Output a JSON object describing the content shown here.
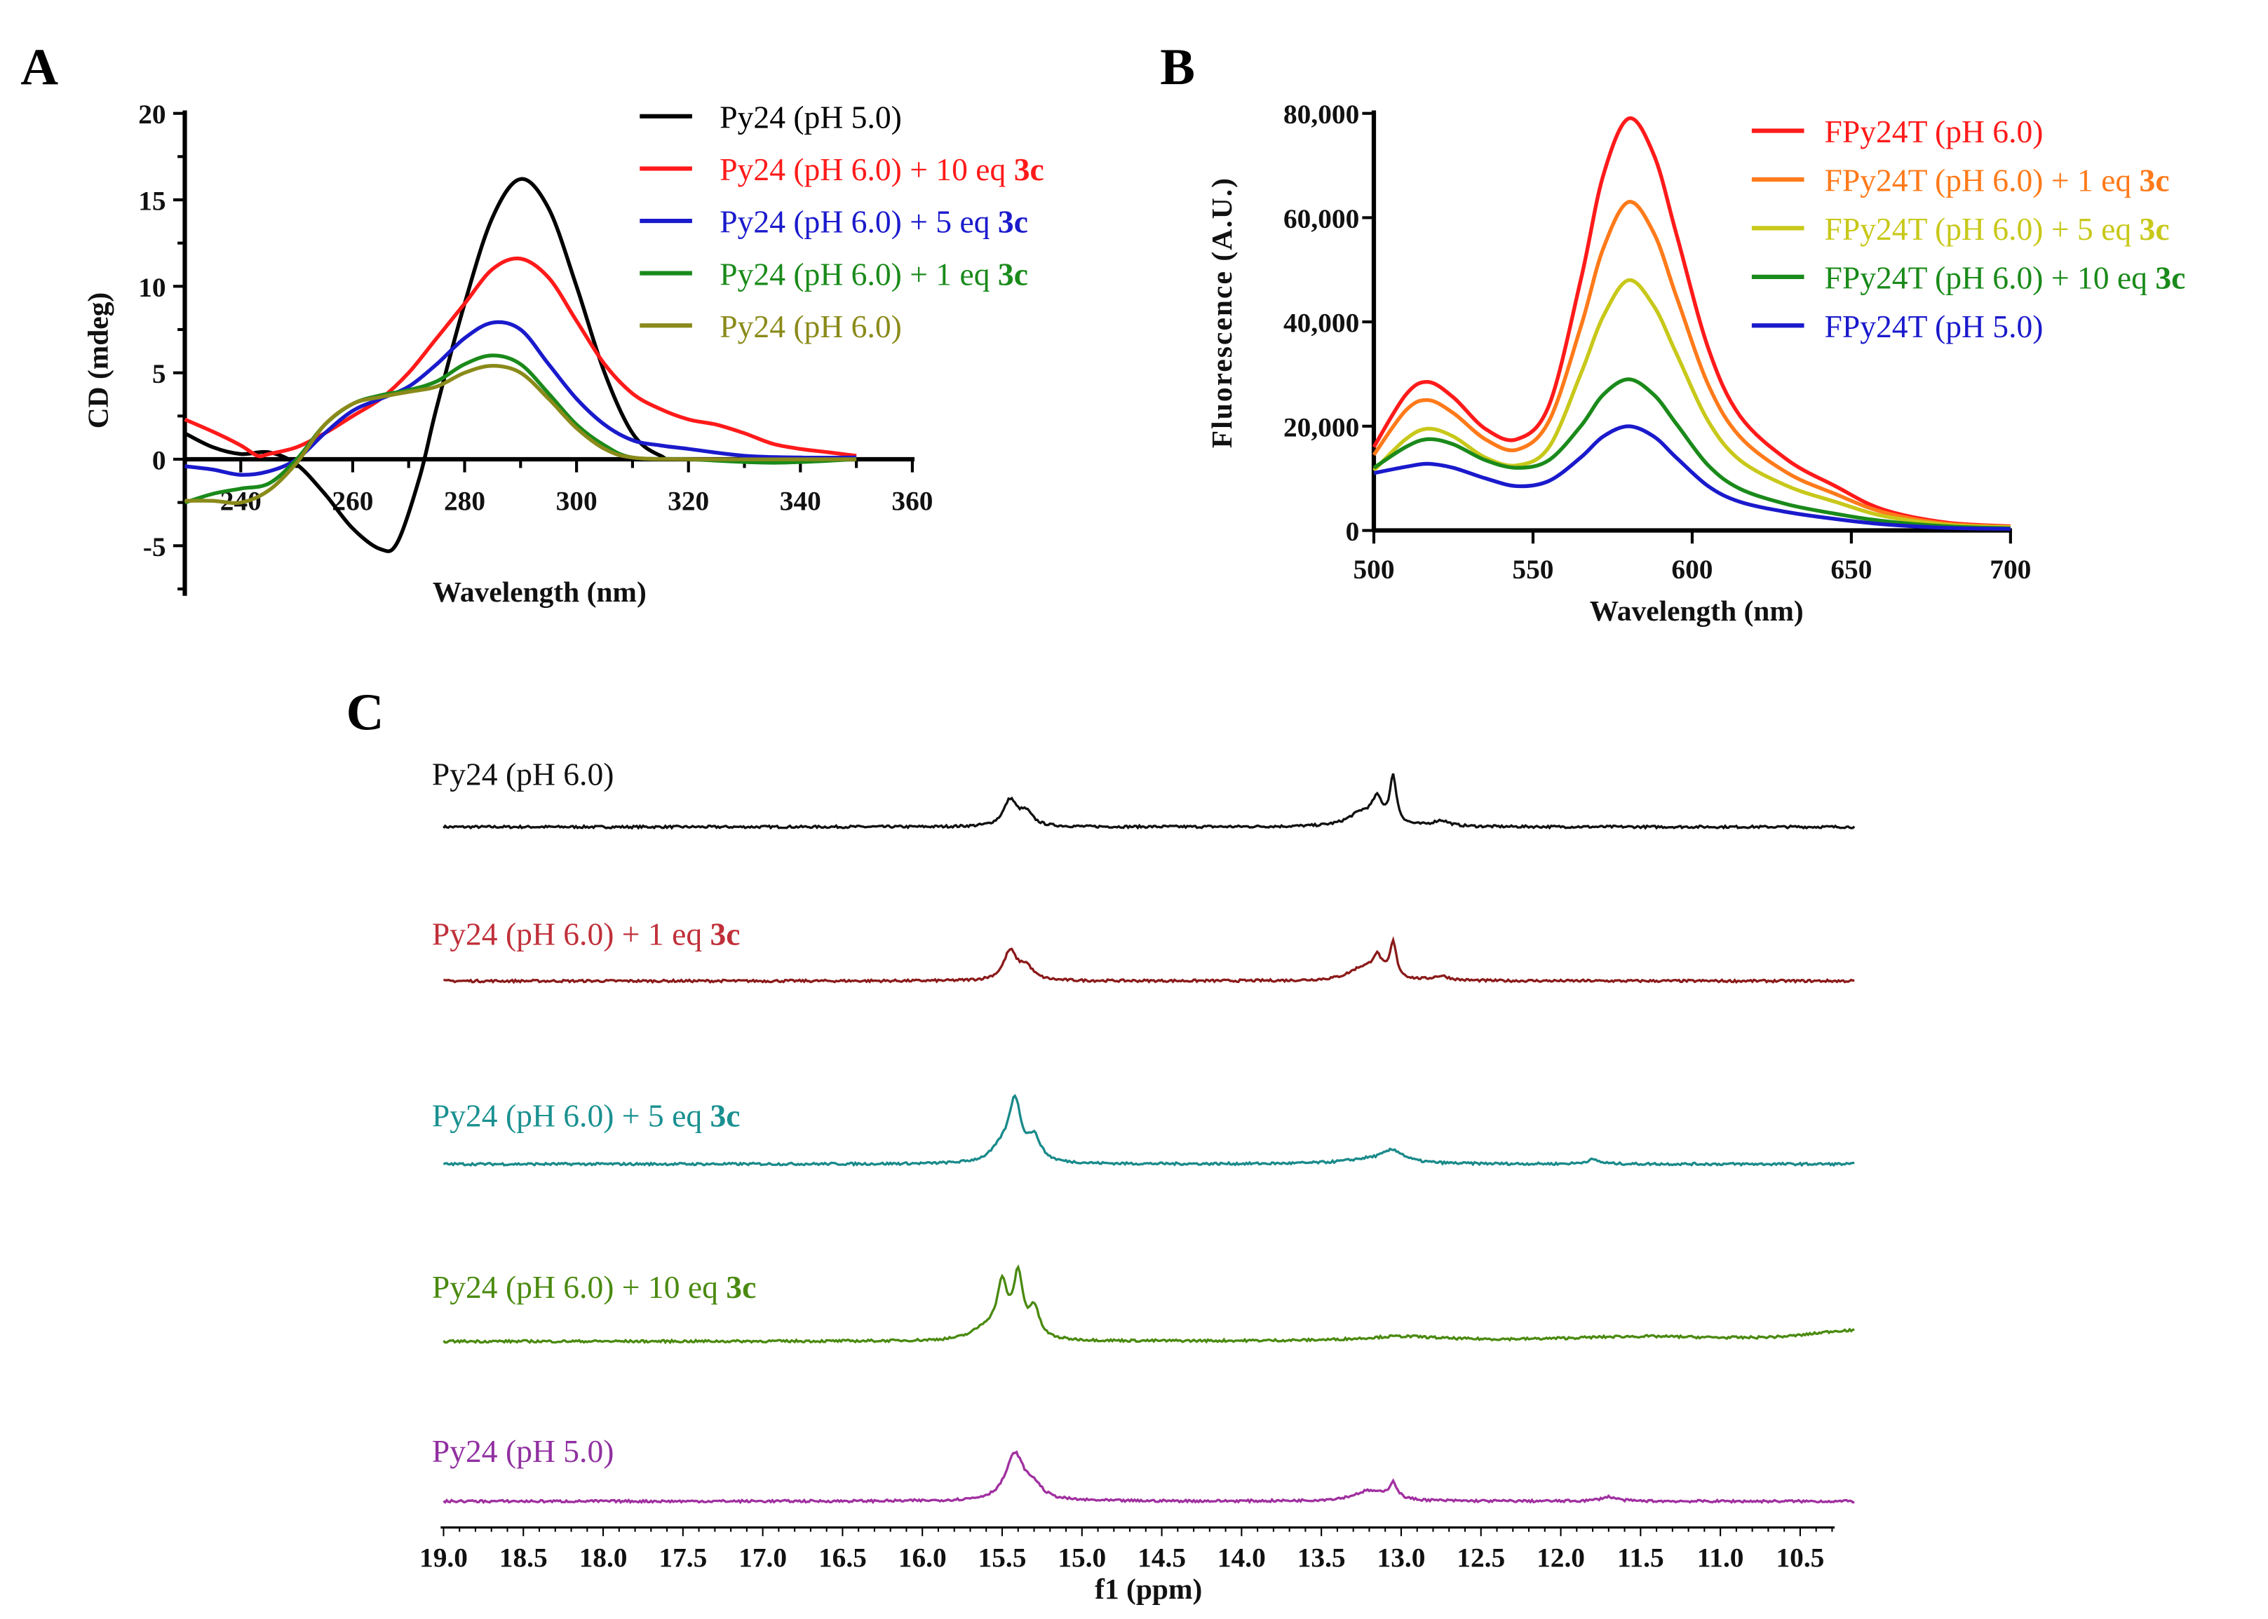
{
  "chart_data": [
    {
      "panel": "A",
      "type": "line",
      "xlabel": "Wavelength (nm)",
      "ylabel": "CD (mdeg)",
      "xlim": [
        230,
        360
      ],
      "ylim": [
        -7.5,
        20
      ],
      "xticks": [
        "240",
        "260",
        "280",
        "300",
        "320",
        "340",
        "360"
      ],
      "yticks": [
        "20",
        "15",
        "10",
        "5",
        "0",
        "-5"
      ],
      "legend_position": "top-right",
      "series": [
        {
          "name": "Py24 (pH 5.0)",
          "bold": "",
          "color": "#000000",
          "x": [
            230,
            235,
            240,
            245,
            250,
            255,
            260,
            265,
            268,
            272,
            275,
            280,
            285,
            290,
            295,
            300,
            305,
            310,
            315,
            320,
            350
          ],
          "y": [
            1.5,
            0.7,
            0.3,
            0.4,
            -0.3,
            -2,
            -4,
            -5.2,
            -4.8,
            -1,
            3,
            9,
            14,
            16.2,
            14.5,
            10,
            5,
            1.5,
            0.2,
            0,
            0
          ]
        },
        {
          "name": "Py24 (pH 6.0) + 10 eq ",
          "bold": "3c",
          "color": "#ff1a1a",
          "x": [
            230,
            235,
            240,
            243,
            245,
            250,
            255,
            260,
            265,
            270,
            275,
            280,
            285,
            290,
            295,
            300,
            305,
            310,
            315,
            320,
            325,
            330,
            335,
            340,
            345,
            350
          ],
          "y": [
            2.3,
            1.6,
            0.8,
            0.2,
            0.3,
            0.7,
            1.5,
            2.5,
            3.5,
            5,
            7,
            9,
            11,
            11.6,
            10.5,
            8,
            5.5,
            3.8,
            2.9,
            2.3,
            2,
            1.5,
            0.9,
            0.6,
            0.4,
            0.2
          ]
        },
        {
          "name": "Py24 (pH 6.0) + 5 eq ",
          "bold": "3c",
          "color": "#1a1acc",
          "x": [
            230,
            235,
            240,
            245,
            250,
            255,
            260,
            265,
            270,
            275,
            280,
            285,
            290,
            295,
            300,
            305,
            310,
            315,
            320,
            330,
            340,
            350
          ],
          "y": [
            -0.4,
            -0.6,
            -0.9,
            -0.7,
            0,
            1.5,
            2.8,
            3.5,
            4.2,
            5.5,
            7,
            7.9,
            7.5,
            5.5,
            3.5,
            2,
            1.1,
            0.8,
            0.6,
            0.2,
            0.1,
            0.1
          ]
        },
        {
          "name": "Py24 (pH 6.0) + 1 eq ",
          "bold": "3c",
          "color": "#1a8a1a",
          "x": [
            230,
            235,
            240,
            245,
            250,
            255,
            260,
            265,
            270,
            275,
            280,
            285,
            290,
            295,
            300,
            305,
            310,
            320,
            335,
            350
          ],
          "y": [
            -2.5,
            -2,
            -1.7,
            -1.4,
            0,
            2,
            3.2,
            3.7,
            4,
            4.5,
            5.5,
            6,
            5.5,
            3.8,
            2,
            0.8,
            0.1,
            0,
            -0.2,
            0
          ]
        },
        {
          "name": "Py24 (pH 6.0)",
          "bold": "",
          "color": "#8a8a1a",
          "x": [
            230,
            235,
            240,
            245,
            250,
            255,
            260,
            265,
            270,
            275,
            280,
            285,
            290,
            295,
            300,
            305,
            310,
            320,
            350
          ],
          "y": [
            -2.4,
            -2.4,
            -2.5,
            -1.8,
            -0.2,
            2,
            3.2,
            3.6,
            3.9,
            4.2,
            5,
            5.4,
            5,
            3.5,
            1.8,
            0.6,
            0.1,
            0,
            0
          ]
        }
      ]
    },
    {
      "panel": "B",
      "type": "line",
      "xlabel": "Wavelength (nm)",
      "ylabel": "Fluorescence (A.U.)",
      "xlim": [
        500,
        700
      ],
      "ylim": [
        0,
        80000
      ],
      "xticks": [
        "500",
        "550",
        "600",
        "650",
        "700"
      ],
      "yticks": [
        "80,000",
        "60,000",
        "40,000",
        "20,000",
        "0"
      ],
      "legend_position": "top-right",
      "x": [
        500,
        510,
        517,
        525,
        535,
        545,
        555,
        565,
        572,
        580,
        588,
        595,
        605,
        615,
        630,
        645,
        660,
        680,
        700
      ],
      "series": [
        {
          "name": "FPy24T (pH 6.0)",
          "bold": "",
          "color": "#ff1a1a",
          "y": [
            16000,
            26000,
            28500,
            25500,
            19500,
            17500,
            24000,
            48000,
            68000,
            79000,
            72000,
            57000,
            35000,
            22000,
            13500,
            8500,
            4000,
            1500,
            800
          ]
        },
        {
          "name": "FPy24T (pH 6.0) + 1 eq ",
          "bold": "3c",
          "color": "#ff7a1a",
          "y": [
            14500,
            23000,
            25000,
            22500,
            17500,
            15500,
            21000,
            39000,
            54000,
            63000,
            57000,
            45000,
            28000,
            18000,
            11000,
            7000,
            3500,
            1300,
            700
          ]
        },
        {
          "name": "FPy24T (pH 6.0) + 5 eq ",
          "bold": "3c",
          "color": "#c8c81a",
          "y": [
            11500,
            17500,
            19500,
            18000,
            14000,
            12500,
            16000,
            30000,
            41000,
            48000,
            43000,
            34000,
            21000,
            13500,
            8500,
            5500,
            2800,
            1100,
            600
          ]
        },
        {
          "name": "FPy24T (pH 6.0) + 10 eq ",
          "bold": "3c",
          "color": "#1a8a1a",
          "y": [
            12000,
            16000,
            17500,
            16500,
            13500,
            12000,
            13500,
            20000,
            26000,
            29000,
            26000,
            20500,
            12500,
            8000,
            5000,
            3200,
            1800,
            800,
            400
          ]
        },
        {
          "name": "FPy24T (pH 5.0)",
          "bold": "",
          "color": "#1a1acc",
          "y": [
            11000,
            12200,
            12800,
            12000,
            10000,
            8500,
            9500,
            14000,
            18000,
            20000,
            18000,
            14000,
            8500,
            5500,
            3500,
            2200,
            1200,
            500,
            300
          ]
        }
      ]
    },
    {
      "panel": "C",
      "type": "line",
      "xlabel": "f1 (ppm)",
      "xlim": [
        19.0,
        10.2
      ],
      "xticks": [
        "19.0",
        "18.5",
        "18.0",
        "17.5",
        "17.0",
        "16.5",
        "16.0",
        "15.5",
        "15.0",
        "14.5",
        "14.0",
        "13.5",
        "13.0",
        "12.5",
        "12.0",
        "11.5",
        "11.0",
        "10.5"
      ],
      "series": [
        {
          "name": "Py24 (pH 6.0)",
          "bold": "",
          "color": "#111111",
          "label_color": "#111111",
          "peaks": [
            [
              15.45,
              18,
              0.05
            ],
            [
              15.35,
              9,
              0.05
            ],
            [
              13.05,
              32,
              0.025
            ],
            [
              13.15,
              16,
              0.04
            ],
            [
              13.25,
              9,
              0.1
            ],
            [
              12.75,
              4,
              0.06
            ]
          ]
        },
        {
          "name": "Py24 (pH 6.0) + 1 eq ",
          "bold": "3c",
          "color": "#8b1a1a",
          "label_color": "#c0303a",
          "peaks": [
            [
              15.45,
              20,
              0.05
            ],
            [
              15.35,
              9,
              0.05
            ],
            [
              13.05,
              24,
              0.025
            ],
            [
              13.15,
              14,
              0.04
            ],
            [
              13.25,
              8,
              0.1
            ],
            [
              12.75,
              3,
              0.06
            ]
          ]
        },
        {
          "name": "Py24 (pH 6.0) + 5 eq ",
          "bold": "3c",
          "color": "#1a8a8a",
          "label_color": "#1a9090",
          "peaks": [
            [
              15.42,
              40,
              0.045
            ],
            [
              15.3,
              16,
              0.05
            ],
            [
              15.5,
              10,
              0.08
            ],
            [
              13.05,
              8,
              0.08
            ],
            [
              13.2,
              3,
              0.2
            ],
            [
              11.8,
              3,
              0.05
            ]
          ]
        },
        {
          "name": "Py24 (pH 6.0) + 10 eq ",
          "bold": "3c",
          "color": "#4a8a10",
          "label_color": "#4a8a10",
          "peaks": [
            [
              15.5,
              35,
              0.04
            ],
            [
              15.4,
              42,
              0.035
            ],
            [
              15.3,
              20,
              0.04
            ],
            [
              15.6,
              8,
              0.1
            ],
            [
              13.0,
              3,
              0.3
            ],
            [
              11.5,
              3,
              0.6
            ],
            [
              10.2,
              7,
              0.3
            ]
          ]
        },
        {
          "name": "Py24 (pH 5.0)",
          "bold": "",
          "color": "#a030a0",
          "label_color": "#9030a0",
          "peaks": [
            [
              15.42,
              32,
              0.07
            ],
            [
              15.3,
              8,
              0.06
            ],
            [
              13.05,
              11,
              0.03
            ],
            [
              13.2,
              7,
              0.12
            ],
            [
              11.7,
              3,
              0.06
            ]
          ]
        }
      ]
    }
  ],
  "panel_labels": {
    "a": "A",
    "b": "B",
    "c": "C"
  }
}
